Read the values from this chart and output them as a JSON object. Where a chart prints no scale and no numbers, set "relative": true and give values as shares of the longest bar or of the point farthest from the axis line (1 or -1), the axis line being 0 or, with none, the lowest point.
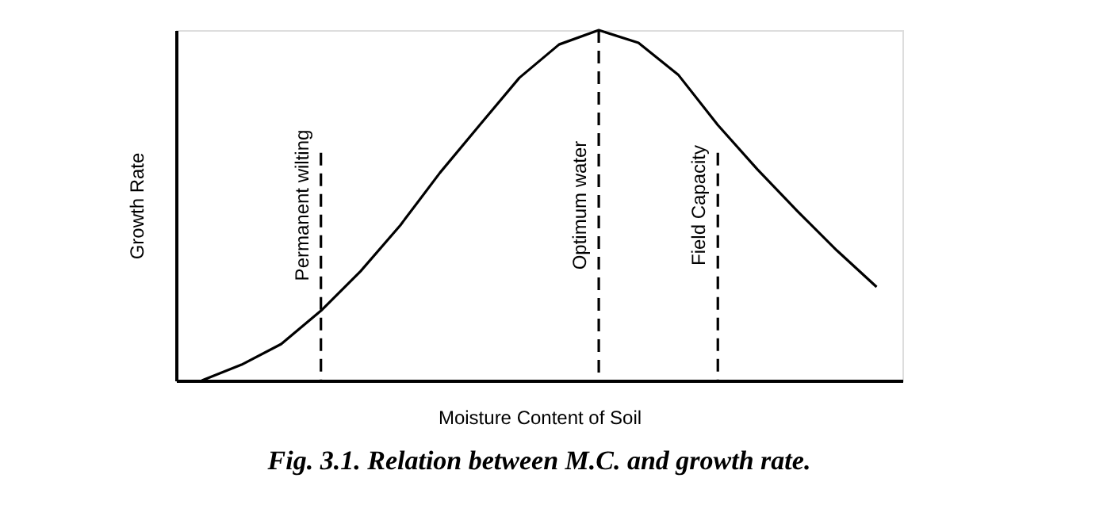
{
  "chart_data": {
    "type": "line",
    "relative": true,
    "title": "Fig. 3.1. Relation between M.C. and growth rate.",
    "xlabel": "Moisture Content of Soil",
    "ylabel": "Growth Rate",
    "marker": "none",
    "line_style": "solid",
    "categories": [
      null,
      null,
      null,
      null,
      null,
      null,
      null,
      null,
      null,
      null,
      null,
      null,
      null,
      null,
      null,
      null,
      null,
      null
    ],
    "series": [
      {
        "color": "#000000",
        "values": [
          0,
          0.045,
          0.104,
          0.199,
          0.312,
          0.443,
          0.593,
          0.729,
          0.864,
          0.959,
          1,
          0.964,
          0.873,
          0.729,
          0.602,
          0.484,
          0.371,
          0.267
        ]
      }
    ],
    "annotations": [
      "Permanent wilting",
      "Optimum water",
      "Field Capacity"
    ]
  }
}
